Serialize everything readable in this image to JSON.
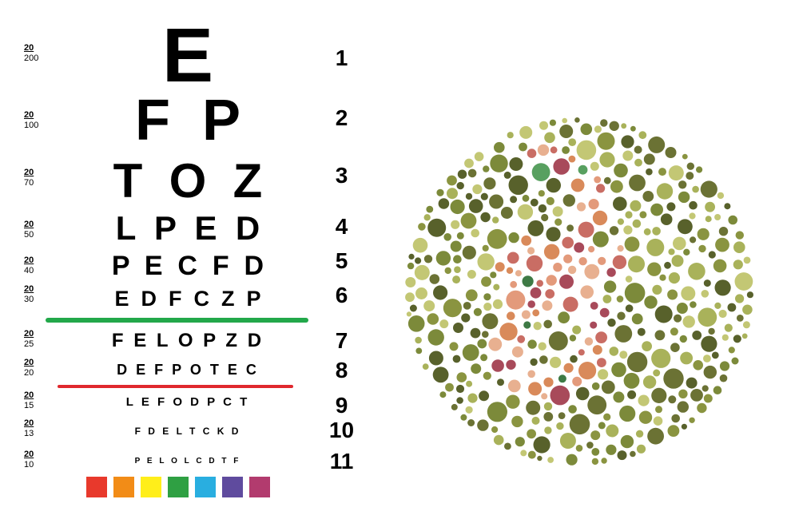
{
  "rows": [
    {
      "n": "1",
      "acuity_num": "20",
      "acuity_den": "200",
      "letters": "E",
      "font_size": 96
    },
    {
      "n": "2",
      "acuity_num": "20",
      "acuity_den": "100",
      "letters": "F  P",
      "font_size": 72
    },
    {
      "n": "3",
      "acuity_num": "20",
      "acuity_den": "70",
      "letters": "T  O  Z",
      "font_size": 60
    },
    {
      "n": "4",
      "acuity_num": "20",
      "acuity_den": "50",
      "letters": "L  P  E  D",
      "font_size": 42
    },
    {
      "n": "5",
      "acuity_num": "20",
      "acuity_den": "40",
      "letters": "P  E  C  F  D",
      "font_size": 34
    },
    {
      "n": "6",
      "acuity_num": "20",
      "acuity_den": "30",
      "letters": "E  D  F  C  Z  P",
      "font_size": 27
    },
    {
      "n": "7",
      "acuity_num": "20",
      "acuity_den": "25",
      "letters": "F E L O P Z D",
      "font_size": 24
    },
    {
      "n": "8",
      "acuity_num": "20",
      "acuity_den": "20",
      "letters": "D E F P O T E C",
      "font_size": 18
    },
    {
      "n": "9",
      "acuity_num": "20",
      "acuity_den": "15",
      "letters": "L E F O D P C T",
      "font_size": 15
    },
    {
      "n": "10",
      "acuity_num": "20",
      "acuity_den": "13",
      "letters": "F D E L T C K D",
      "font_size": 12
    },
    {
      "n": "11",
      "acuity_num": "20",
      "acuity_den": "10",
      "letters": "P E L O L C D T F",
      "font_size": 10
    }
  ],
  "lines": {
    "green": "#22a84a",
    "red": "#e0282e"
  },
  "swatches": [
    "#e8392c",
    "#f28c17",
    "#ffee1a",
    "#2fa043",
    "#29aee0",
    "#5f4b9e",
    "#b23b6e"
  ],
  "plate": {
    "background_dot_colors": [
      "#6b7234",
      "#8a9440",
      "#a9b25a",
      "#c3c774",
      "#7c8a3a",
      "#58612b"
    ],
    "figure_dot_colors": [
      "#e39a7b",
      "#c96d64",
      "#a84a5a",
      "#d98a5a",
      "#e8b090"
    ],
    "highlight_dot_colors": [
      "#3e7a45",
      "#58a060"
    ]
  }
}
